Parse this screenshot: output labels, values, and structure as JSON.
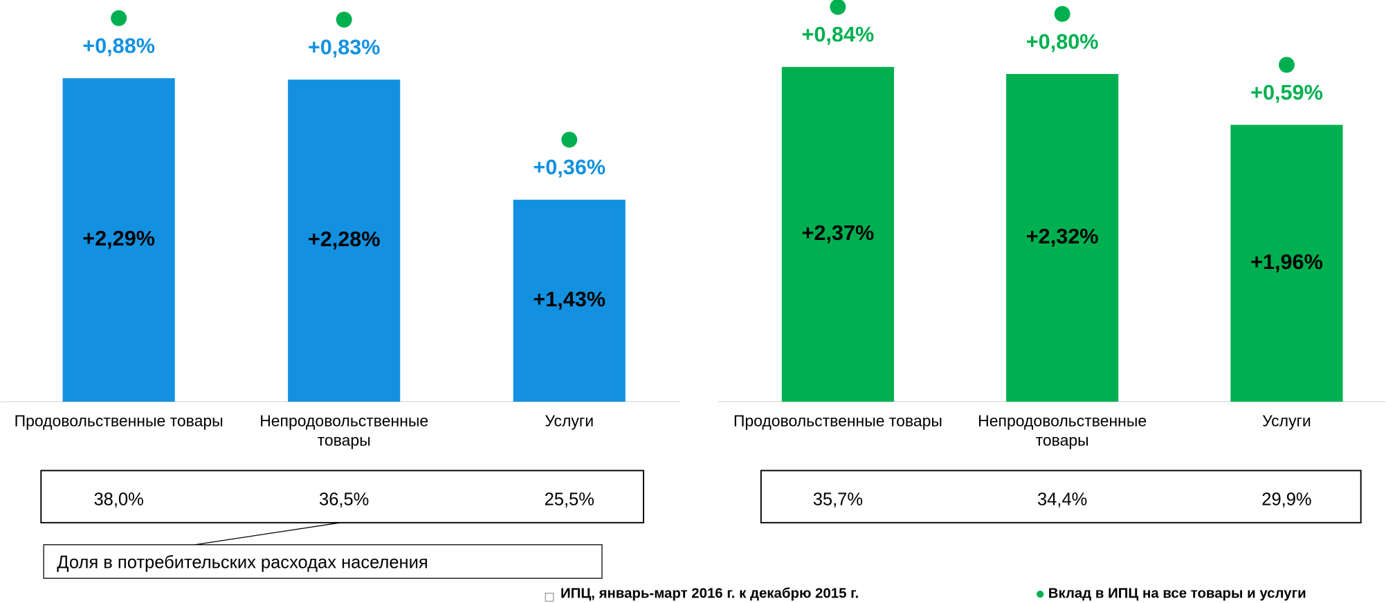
{
  "chart_data": [
    {
      "type": "bar",
      "categories": [
        "Продовольственные товары",
        "Непродовольственные товары",
        "Услуги"
      ],
      "ylim": [
        0,
        2.6
      ],
      "series": [
        {
          "color": "#1391e0",
          "values": [
            2.29,
            2.28,
            1.43
          ],
          "value_labels": [
            "+2,29%",
            "+2,28%",
            "+1,43%"
          ]
        },
        {
          "color": "#1391e0",
          "marker_color": "#00b050",
          "values": [
            0.88,
            0.83,
            0.36
          ],
          "value_labels": [
            "+0,88%",
            "+0,83%",
            "+0,36%"
          ]
        }
      ],
      "shares": [
        "38,0%",
        "36,5%",
        "25,5%"
      ]
    },
    {
      "type": "bar",
      "categories": [
        "Продовольственные товары",
        "Непродовольственные товары",
        "Услуги"
      ],
      "ylim": [
        0,
        2.6
      ],
      "series": [
        {
          "color": "#00b050",
          "values": [
            2.37,
            2.32,
            1.96
          ],
          "value_labels": [
            "+2,37%",
            "+2,32%",
            "+1,96%"
          ]
        },
        {
          "color": "#00b050",
          "marker_color": "#00b050",
          "values": [
            0.84,
            0.8,
            0.59
          ],
          "value_labels": [
            "+0,84%",
            "+0,80%",
            "+0,59%"
          ]
        }
      ],
      "shares": [
        "35,7%",
        "34,4%",
        "29,9%"
      ]
    }
  ],
  "share_caption": "Доля в потребительских расходах населения",
  "legend": [
    "ИПЦ, январь-март 2016 г. к декабрю 2015 г.",
    "Вклад в ИПЦ на все товары и услуги"
  ]
}
